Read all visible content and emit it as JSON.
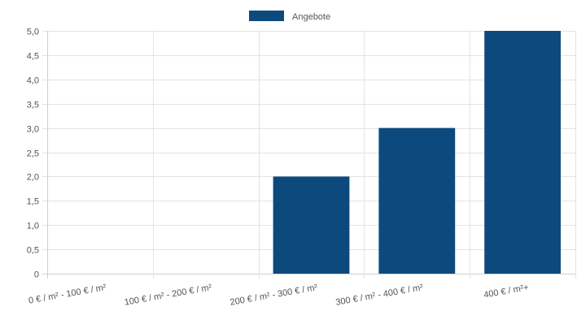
{
  "chart_data": {
    "type": "bar",
    "categories": [
      "0 € / m² - 100 € / m²",
      "100 € / m² - 200 € / m²",
      "200 € / m² - 300 € / m²",
      "300 € / m² - 400 € / m²",
      "400 € / m²+"
    ],
    "series": [
      {
        "name": "Angebote",
        "values": [
          0,
          0,
          2,
          3,
          5
        ],
        "color": "#0c4a7e"
      }
    ],
    "ylim": [
      0,
      5
    ],
    "ytick_step": 0.5,
    "ytick_labels": [
      "0",
      "0,5",
      "1,0",
      "1,5",
      "2,0",
      "2,5",
      "3,0",
      "3,5",
      "4,0",
      "4,5",
      "5,0"
    ],
    "grid": true,
    "legend_position": "top-center",
    "title": "",
    "xlabel": "",
    "ylabel": ""
  }
}
